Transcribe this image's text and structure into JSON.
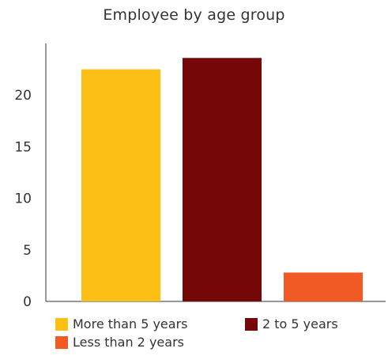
{
  "chart_data": {
    "type": "bar",
    "title": "Employee by age group",
    "xlabel": "",
    "ylabel": "",
    "categories": [
      "More than 5 years",
      "2 to 5 years",
      "Less than 2 years"
    ],
    "values": [
      22.5,
      23.6,
      2.8
    ],
    "colors": [
      "#FBBF16",
      "#760709",
      "#F15A24"
    ],
    "ylim": [
      0,
      25
    ],
    "yticks": [
      0,
      5,
      10,
      15,
      20
    ],
    "ytick_labels": [
      "0",
      "5",
      "10",
      "15",
      "20"
    ],
    "grid": false,
    "legend": {
      "placement": "bottom",
      "entries": [
        "More than 5 years",
        "2 to 5 years",
        "Less than 2 years"
      ]
    }
  }
}
